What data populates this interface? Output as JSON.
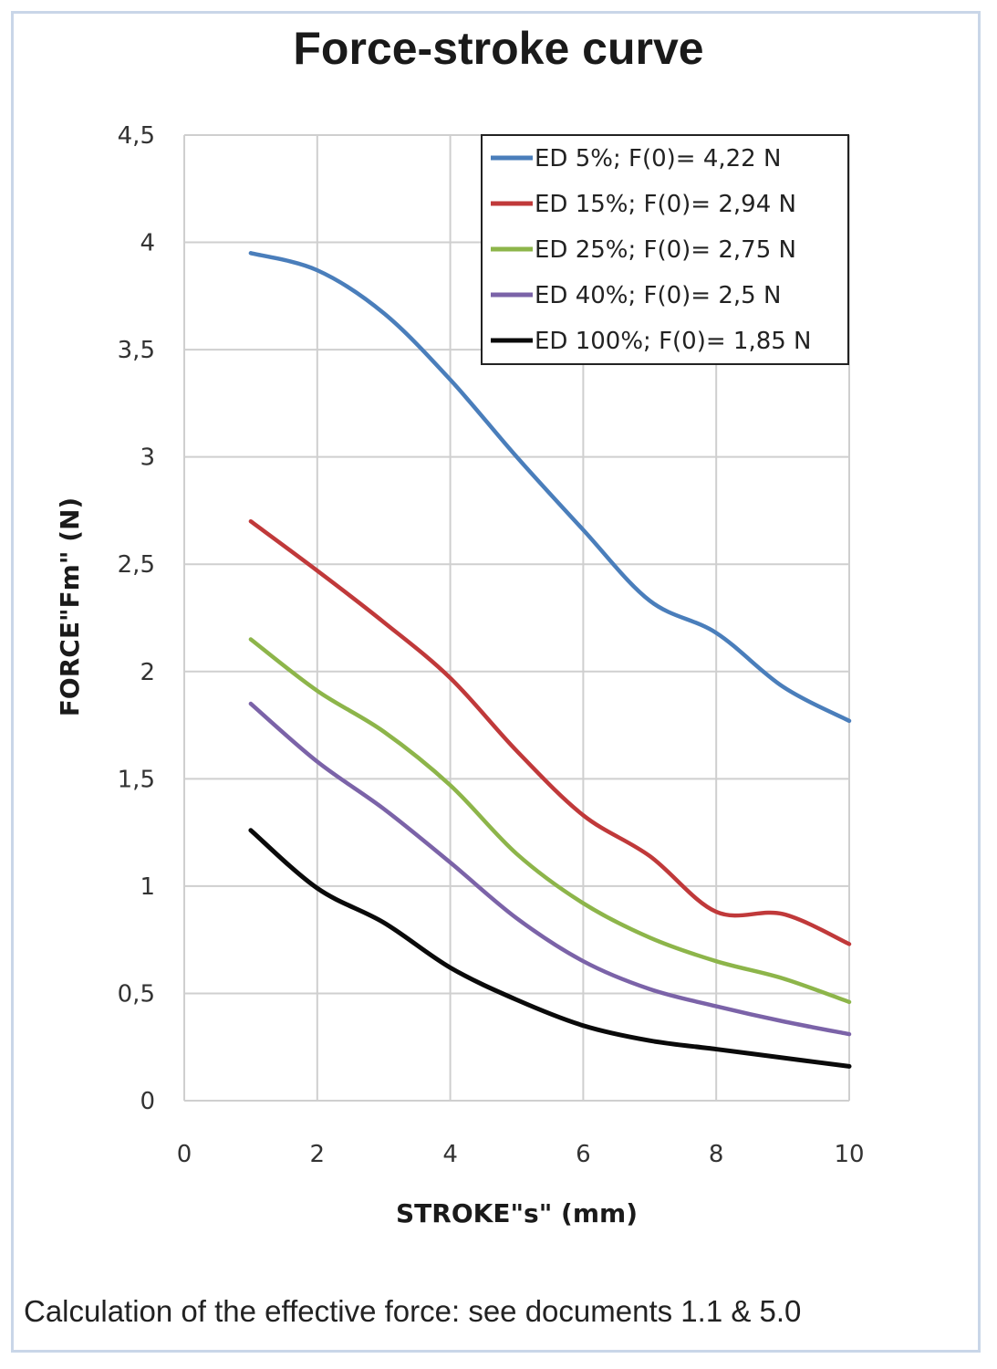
{
  "title": "Force-stroke curve",
  "footnote": "Calculation of the effective force: see documents 1.1 & 5.0",
  "chart_data": {
    "type": "line",
    "xlabel": "STROKE\"s\" (mm)",
    "ylabel": "FORCE\"Fm\" (N)",
    "xlim": [
      0,
      10
    ],
    "ylim": [
      0,
      4.5
    ],
    "x_ticks": [
      "0",
      "2",
      "4",
      "6",
      "8",
      "10"
    ],
    "y_ticks": [
      "0",
      "0,5",
      "1",
      "1,5",
      "2",
      "2,5",
      "3",
      "3,5",
      "4",
      "4,5"
    ],
    "grid": true,
    "legend_position": "top-right",
    "x": [
      1,
      2,
      3,
      4,
      5,
      6,
      7,
      8,
      9,
      10
    ],
    "series": [
      {
        "name": "ED 5%; F(0)= 4,22 N",
        "color": "#4a7ebb",
        "values": [
          3.95,
          3.87,
          3.67,
          3.36,
          3.0,
          2.66,
          2.33,
          2.18,
          1.93,
          1.77
        ]
      },
      {
        "name": "ED 15%; F(0)= 2,94 N",
        "color": "#c0393a",
        "values": [
          2.7,
          2.47,
          2.23,
          1.97,
          1.63,
          1.33,
          1.14,
          0.88,
          0.87,
          0.73
        ]
      },
      {
        "name": "ED 25%; F(0)= 2,75 N",
        "color": "#8db54a",
        "values": [
          2.15,
          1.91,
          1.72,
          1.47,
          1.15,
          0.92,
          0.76,
          0.65,
          0.57,
          0.46
        ]
      },
      {
        "name": "ED 40%; F(0)= 2,5 N",
        "color": "#7b63a8",
        "values": [
          1.85,
          1.58,
          1.36,
          1.11,
          0.85,
          0.65,
          0.52,
          0.44,
          0.37,
          0.31
        ]
      },
      {
        "name": "ED 100%; F(0)= 1,85 N",
        "color": "#0a0a0a",
        "values": [
          1.26,
          0.99,
          0.83,
          0.62,
          0.47,
          0.35,
          0.28,
          0.24,
          0.2,
          0.16
        ]
      }
    ]
  }
}
